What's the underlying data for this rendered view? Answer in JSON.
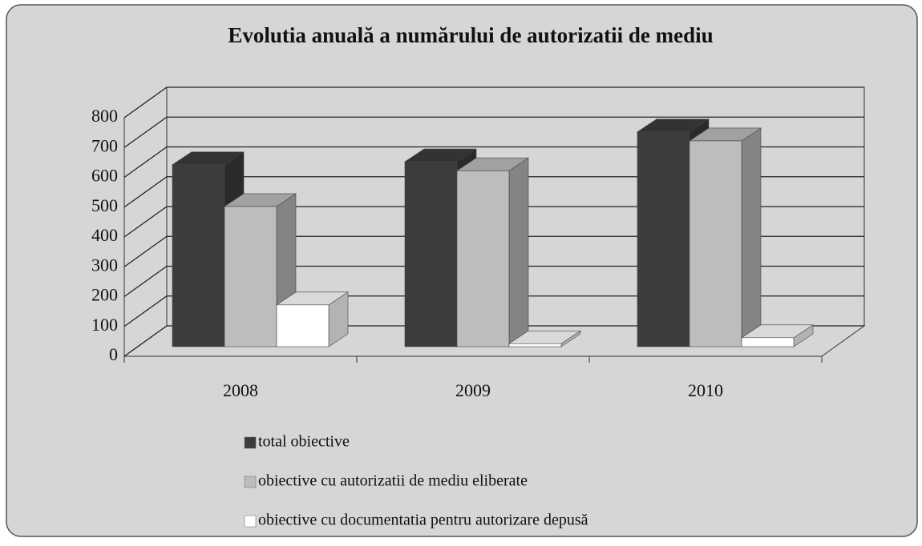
{
  "chart_data": {
    "type": "bar3d",
    "title": "Evolutia anuală a numărului de autorizatii de mediu",
    "categories": [
      "2008",
      "2009",
      "2010"
    ],
    "series": [
      {
        "name": "total obiective",
        "color": "#3c3c3c",
        "values": [
          610,
          620,
          720
        ]
      },
      {
        "name": "obiective cu autorizatii de mediu eliberate",
        "color": "#bdbdbd",
        "values": [
          470,
          590,
          690
        ]
      },
      {
        "name": "obiective cu documentatia pentru autorizare depusă",
        "color": "#ffffff",
        "values": [
          140,
          10,
          30
        ]
      }
    ],
    "ylim": [
      0,
      800
    ],
    "yticks": [
      0,
      100,
      200,
      300,
      400,
      500,
      600,
      700,
      800
    ],
    "grid": true
  }
}
